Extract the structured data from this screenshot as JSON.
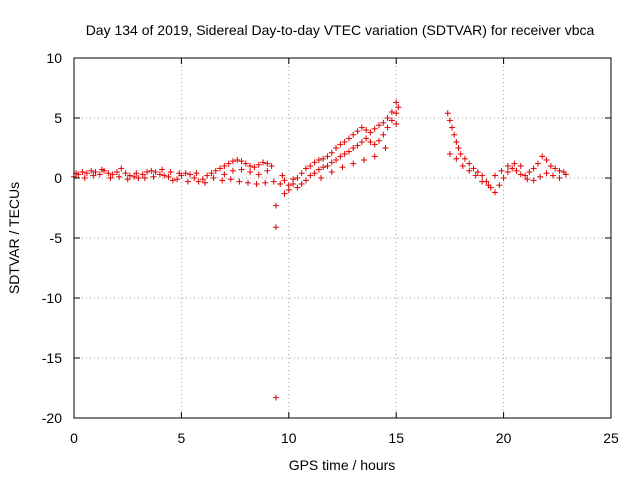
{
  "chart_data": {
    "type": "scatter",
    "title": "Day 134 of 2019, Sidereal Day-to-day VTEC variation (SDTVAR) for receiver vbca",
    "xlabel": "GPS time / hours",
    "ylabel": "SDTVAR / TECUs",
    "xlim": [
      0,
      25
    ],
    "ylim": [
      -20,
      10
    ],
    "xticks": [
      0,
      5,
      10,
      15,
      20,
      25
    ],
    "yticks": [
      -20,
      -15,
      -10,
      -5,
      0,
      5,
      10
    ],
    "xtick_labels": [
      "0",
      "5",
      "10",
      "15",
      "20",
      "25"
    ],
    "ytick_labels": [
      "-20",
      "-15",
      "-10",
      "-5",
      "0",
      "5",
      "10"
    ],
    "grid": true,
    "marker": "+",
    "color": "#e00000",
    "series": [
      {
        "name": "vbca",
        "points": [
          [
            0.0,
            0.1
          ],
          [
            0.2,
            0.3
          ],
          [
            0.4,
            0.5
          ],
          [
            0.6,
            0.4
          ],
          [
            0.8,
            0.6
          ],
          [
            1.0,
            0.5
          ],
          [
            1.2,
            0.3
          ],
          [
            1.4,
            0.6
          ],
          [
            1.6,
            0.4
          ],
          [
            1.8,
            0.3
          ],
          [
            2.0,
            0.5
          ],
          [
            2.2,
            0.8
          ],
          [
            2.4,
            0.4
          ],
          [
            2.6,
            0.2
          ],
          [
            2.8,
            0.1
          ],
          [
            3.0,
            0.0
          ],
          [
            3.2,
            0.3
          ],
          [
            3.4,
            0.5
          ],
          [
            3.6,
            0.6
          ],
          [
            3.8,
            0.5
          ],
          [
            4.0,
            0.3
          ],
          [
            4.2,
            0.2
          ],
          [
            4.4,
            0.1
          ],
          [
            4.6,
            -0.2
          ],
          [
            4.8,
            -0.1
          ],
          [
            5.0,
            0.2
          ],
          [
            5.2,
            0.4
          ],
          [
            5.4,
            0.3
          ],
          [
            5.6,
            0.0
          ],
          [
            5.8,
            -0.3
          ],
          [
            6.0,
            -0.1
          ],
          [
            6.2,
            0.2
          ],
          [
            6.4,
            0.4
          ],
          [
            6.6,
            0.6
          ],
          [
            6.8,
            0.8
          ],
          [
            7.0,
            1.0
          ],
          [
            7.2,
            1.2
          ],
          [
            7.4,
            1.4
          ],
          [
            7.6,
            1.5
          ],
          [
            7.8,
            1.4
          ],
          [
            8.0,
            1.2
          ],
          [
            8.2,
            1.0
          ],
          [
            8.4,
            0.9
          ],
          [
            8.6,
            1.1
          ],
          [
            8.8,
            1.3
          ],
          [
            9.0,
            1.2
          ],
          [
            9.2,
            1.0
          ],
          [
            0.1,
            0.4
          ],
          [
            0.5,
            0.0
          ],
          [
            0.9,
            0.2
          ],
          [
            1.3,
            0.7
          ],
          [
            1.7,
            0.0
          ],
          [
            2.1,
            0.1
          ],
          [
            2.5,
            -0.1
          ],
          [
            2.9,
            0.4
          ],
          [
            3.3,
            0.0
          ],
          [
            3.7,
            0.1
          ],
          [
            4.1,
            0.7
          ],
          [
            4.5,
            0.5
          ],
          [
            4.9,
            0.4
          ],
          [
            5.3,
            -0.3
          ],
          [
            5.7,
            0.4
          ],
          [
            6.1,
            -0.4
          ],
          [
            6.5,
            0.0
          ],
          [
            6.9,
            -0.2
          ],
          [
            7.3,
            -0.1
          ],
          [
            7.7,
            -0.3
          ],
          [
            8.1,
            -0.4
          ],
          [
            8.5,
            -0.5
          ],
          [
            8.9,
            -0.4
          ],
          [
            9.3,
            -0.3
          ],
          [
            7.0,
            0.3
          ],
          [
            7.4,
            0.6
          ],
          [
            7.8,
            0.7
          ],
          [
            8.2,
            0.5
          ],
          [
            8.6,
            0.3
          ],
          [
            9.0,
            0.6
          ],
          [
            9.4,
            -2.3
          ],
          [
            9.4,
            -4.1
          ],
          [
            9.4,
            -18.3
          ],
          [
            9.6,
            -0.5
          ],
          [
            9.7,
            0.2
          ],
          [
            9.8,
            -1.3
          ],
          [
            10.0,
            -1.0
          ],
          [
            10.2,
            -0.5
          ],
          [
            10.4,
            0.0
          ],
          [
            10.6,
            0.4
          ],
          [
            10.8,
            0.8
          ],
          [
            11.0,
            1.0
          ],
          [
            11.2,
            1.3
          ],
          [
            11.4,
            1.5
          ],
          [
            11.6,
            1.6
          ],
          [
            11.8,
            1.8
          ],
          [
            12.0,
            2.1
          ],
          [
            12.2,
            2.5
          ],
          [
            12.4,
            2.8
          ],
          [
            12.6,
            3.0
          ],
          [
            12.8,
            3.3
          ],
          [
            13.0,
            3.6
          ],
          [
            13.2,
            3.9
          ],
          [
            13.4,
            4.2
          ],
          [
            13.6,
            4.0
          ],
          [
            13.8,
            3.8
          ],
          [
            14.0,
            4.1
          ],
          [
            14.2,
            4.4
          ],
          [
            14.4,
            4.6
          ],
          [
            14.6,
            5.0
          ],
          [
            14.8,
            5.5
          ],
          [
            15.0,
            6.3
          ],
          [
            9.8,
            -0.2
          ],
          [
            10.0,
            -0.6
          ],
          [
            10.2,
            -0.1
          ],
          [
            10.4,
            -0.8
          ],
          [
            10.6,
            -0.5
          ],
          [
            10.8,
            -0.2
          ],
          [
            11.0,
            0.2
          ],
          [
            11.2,
            0.4
          ],
          [
            11.4,
            0.7
          ],
          [
            11.6,
            0.9
          ],
          [
            11.8,
            1.0
          ],
          [
            12.0,
            1.3
          ],
          [
            12.2,
            1.5
          ],
          [
            12.4,
            1.8
          ],
          [
            12.6,
            2.0
          ],
          [
            12.8,
            2.2
          ],
          [
            13.0,
            2.5
          ],
          [
            13.2,
            2.7
          ],
          [
            13.4,
            3.0
          ],
          [
            13.6,
            3.3
          ],
          [
            13.8,
            3.0
          ],
          [
            14.0,
            2.8
          ],
          [
            14.2,
            3.1
          ],
          [
            14.4,
            3.6
          ],
          [
            14.6,
            4.2
          ],
          [
            14.8,
            4.8
          ],
          [
            15.0,
            5.4
          ],
          [
            15.1,
            5.9
          ],
          [
            11.5,
            0.0
          ],
          [
            12.0,
            0.5
          ],
          [
            12.5,
            0.9
          ],
          [
            13.0,
            1.2
          ],
          [
            13.5,
            1.5
          ],
          [
            14.0,
            1.8
          ],
          [
            14.5,
            2.5
          ],
          [
            15.0,
            4.5
          ],
          [
            17.4,
            5.4
          ],
          [
            17.5,
            4.8
          ],
          [
            17.6,
            4.2
          ],
          [
            17.7,
            3.6
          ],
          [
            17.8,
            3.0
          ],
          [
            17.9,
            2.5
          ],
          [
            18.0,
            2.0
          ],
          [
            18.2,
            1.6
          ],
          [
            18.4,
            1.2
          ],
          [
            18.6,
            0.8
          ],
          [
            18.8,
            0.5
          ],
          [
            19.0,
            0.2
          ],
          [
            19.2,
            -0.3
          ],
          [
            19.4,
            -0.8
          ],
          [
            19.6,
            -1.2
          ],
          [
            19.8,
            -0.6
          ],
          [
            20.0,
            0.0
          ],
          [
            20.2,
            0.5
          ],
          [
            20.4,
            0.8
          ],
          [
            20.6,
            0.6
          ],
          [
            20.8,
            0.3
          ],
          [
            21.0,
            0.2
          ],
          [
            21.2,
            0.5
          ],
          [
            21.4,
            0.8
          ],
          [
            21.6,
            1.2
          ],
          [
            21.8,
            1.8
          ],
          [
            22.0,
            1.5
          ],
          [
            22.2,
            1.0
          ],
          [
            22.4,
            0.8
          ],
          [
            22.6,
            0.6
          ],
          [
            22.8,
            0.5
          ],
          [
            17.5,
            2.0
          ],
          [
            17.8,
            1.6
          ],
          [
            18.1,
            1.0
          ],
          [
            18.4,
            0.6
          ],
          [
            18.7,
            0.2
          ],
          [
            19.0,
            -0.3
          ],
          [
            19.3,
            -0.6
          ],
          [
            19.6,
            0.2
          ],
          [
            19.9,
            0.6
          ],
          [
            20.2,
            1.0
          ],
          [
            20.5,
            1.2
          ],
          [
            20.8,
            1.0
          ],
          [
            21.1,
            -0.1
          ],
          [
            21.4,
            -0.2
          ],
          [
            21.7,
            0.1
          ],
          [
            22.0,
            0.4
          ],
          [
            22.3,
            0.2
          ],
          [
            22.6,
            0.0
          ],
          [
            22.9,
            0.3
          ]
        ]
      }
    ]
  }
}
